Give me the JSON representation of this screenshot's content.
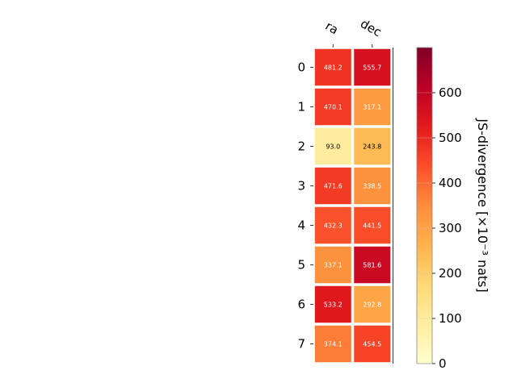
{
  "chart_data": {
    "type": "heatmap",
    "columns": [
      "ra",
      "dec"
    ],
    "rows": [
      "0",
      "1",
      "2",
      "3",
      "4",
      "5",
      "6",
      "7"
    ],
    "values": [
      [
        481.2,
        555.7
      ],
      [
        470.1,
        317.1
      ],
      [
        93.0,
        243.8
      ],
      [
        471.6,
        338.5
      ],
      [
        432.3,
        441.5
      ],
      [
        337.1,
        581.6
      ],
      [
        533.2,
        292.8
      ],
      [
        374.1,
        454.5
      ]
    ],
    "value_labels": [
      [
        "481.2",
        "555.7"
      ],
      [
        "470.1",
        "317.1"
      ],
      [
        "93.0",
        "243.8"
      ],
      [
        "471.6",
        "338.5"
      ],
      [
        "432.3",
        "441.5"
      ],
      [
        "337.1",
        "581.6"
      ],
      [
        "533.2",
        "292.8"
      ],
      [
        "374.1",
        "454.5"
      ]
    ],
    "colorbar": {
      "label": "JS-divergence [×10⁻³ nats]",
      "range": [
        0,
        700
      ],
      "ticks": [
        0,
        100,
        200,
        300,
        400,
        500,
        600
      ],
      "tick_labels": [
        "0",
        "100",
        "200",
        "300",
        "400",
        "500",
        "600"
      ],
      "colormap": "YlOrRd"
    }
  }
}
